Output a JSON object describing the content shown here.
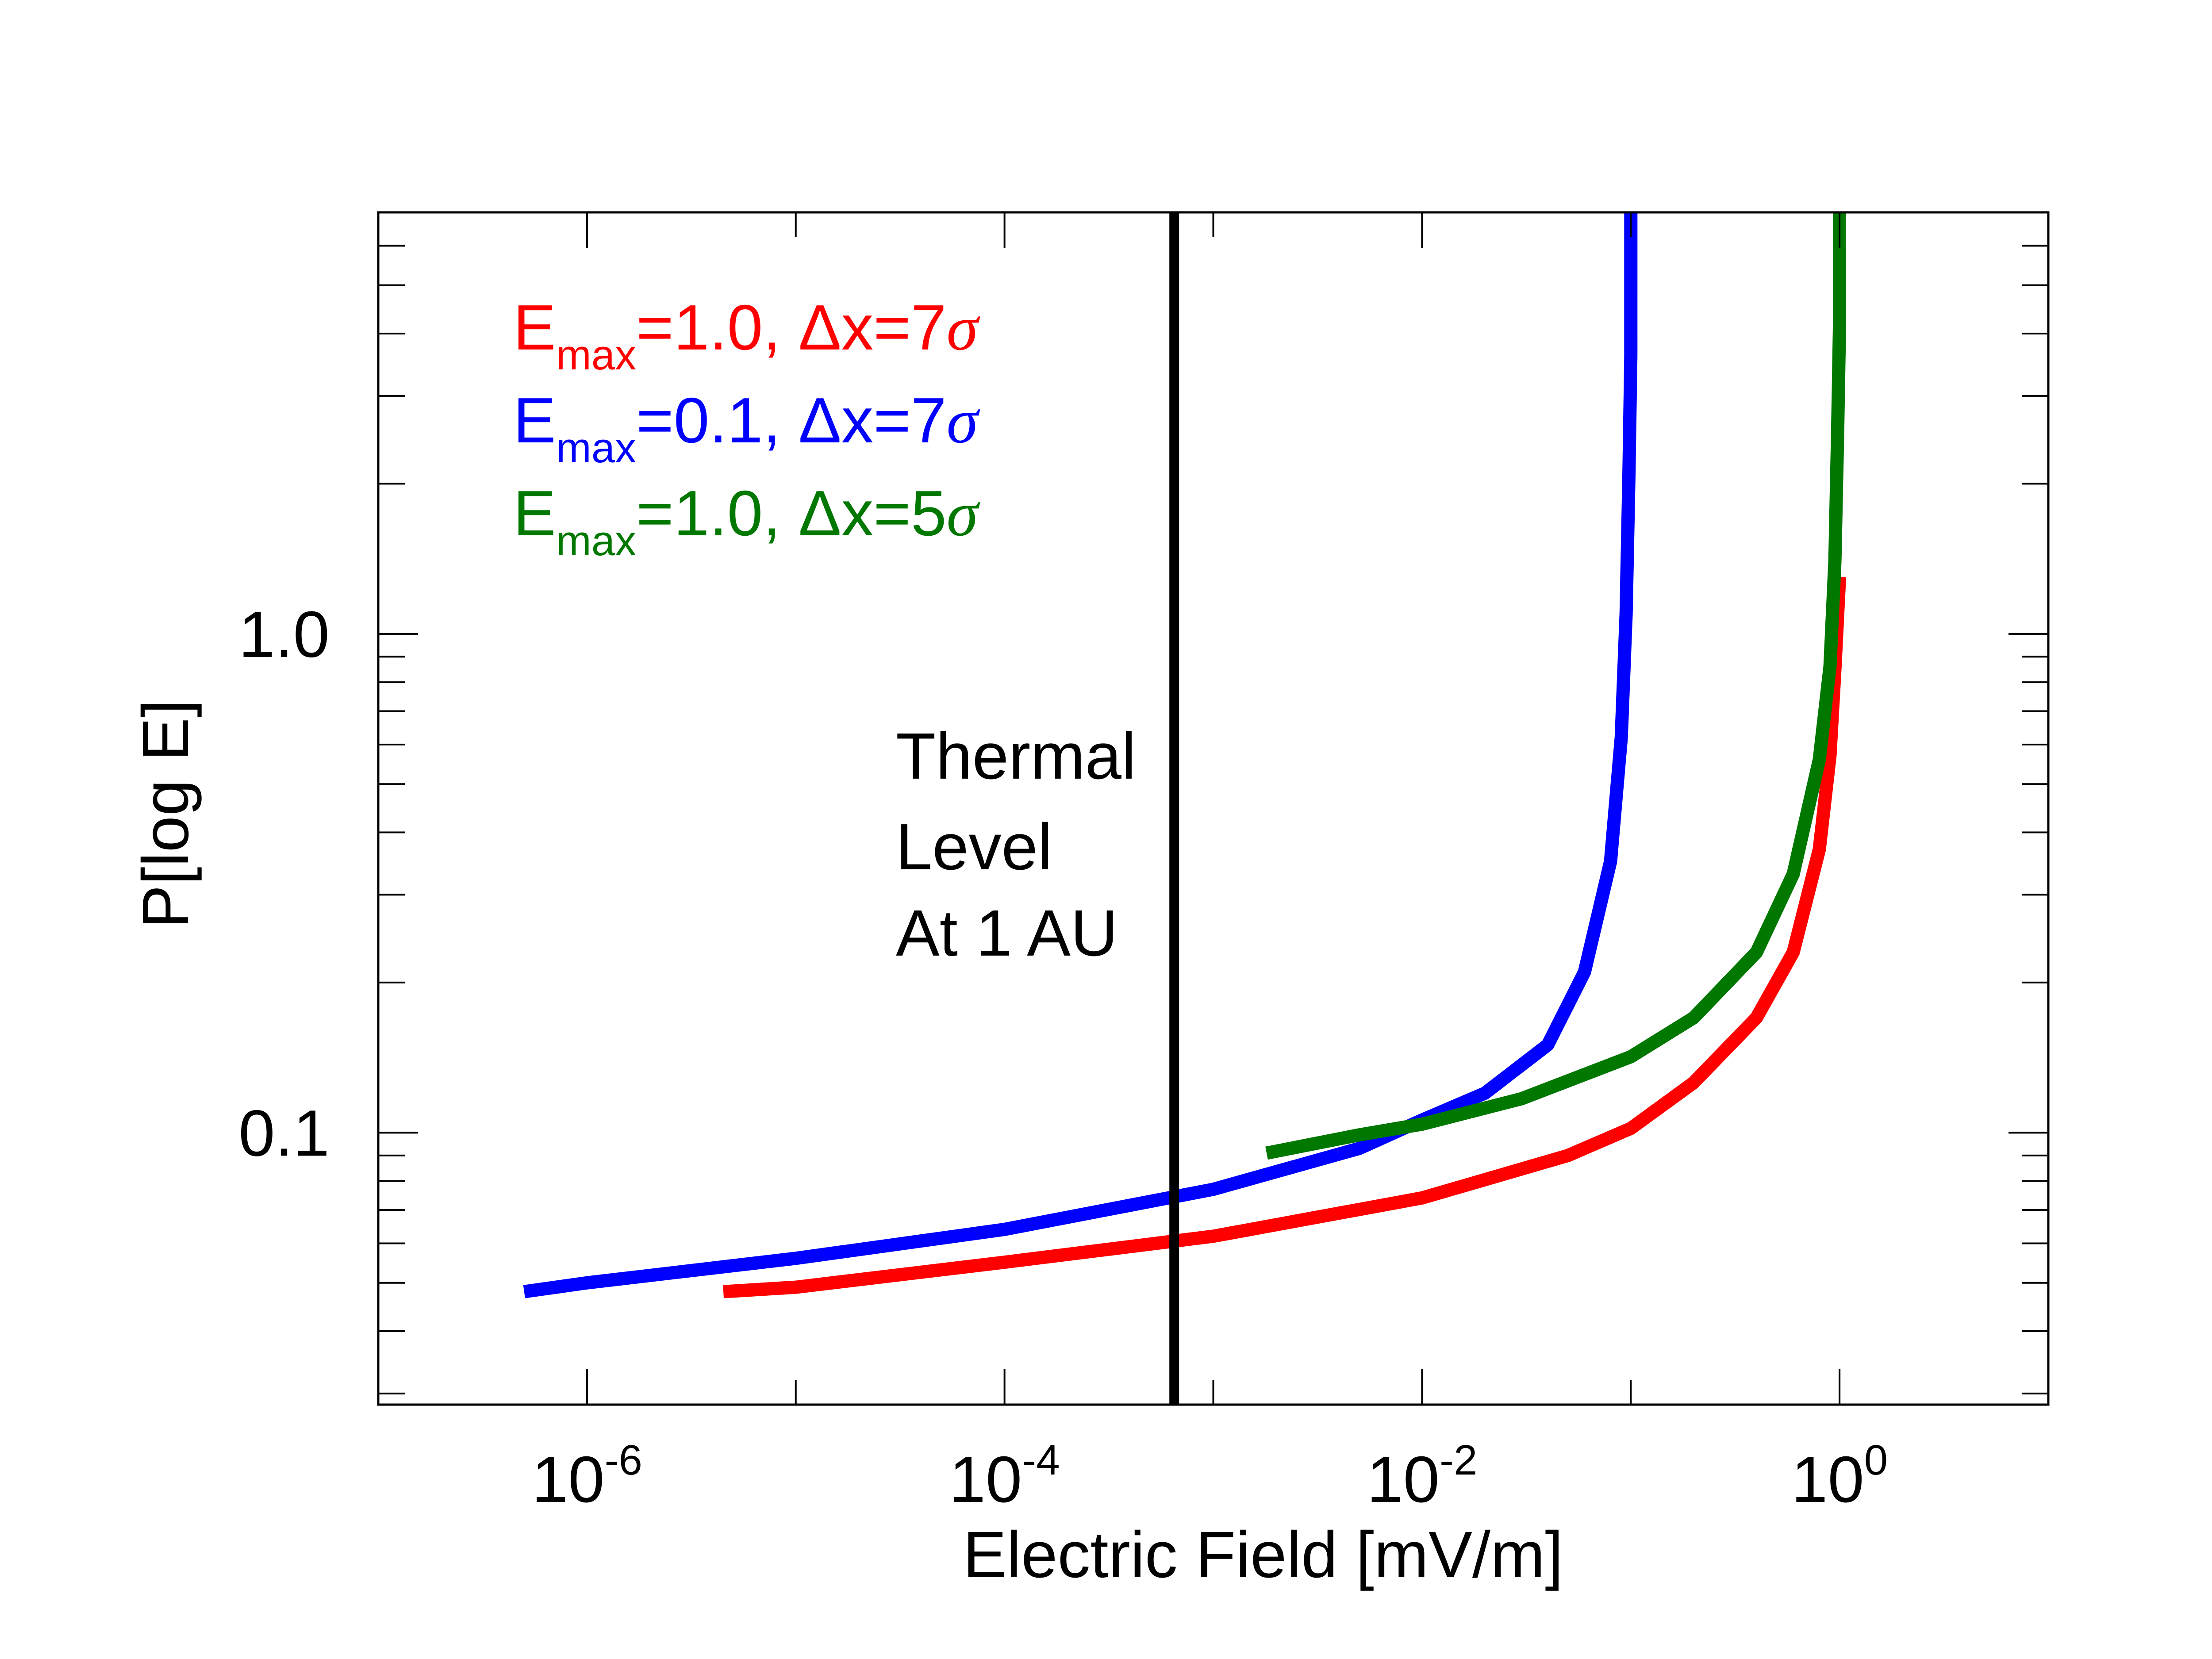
{
  "chart_data": {
    "type": "line",
    "xlabel": "Electric Field [mV/m]",
    "ylabel": "P[log E]",
    "xscale": "log",
    "yscale": "log",
    "xlim": [
      1e-07,
      10
    ],
    "ylim": [
      0.0285,
      7.0
    ],
    "x_ticks": [
      {
        "value": 1e-06,
        "base": "10",
        "exponent": "-6"
      },
      {
        "value": 0.0001,
        "base": "10",
        "exponent": "-4"
      },
      {
        "value": 0.01,
        "base": "10",
        "exponent": "-2"
      },
      {
        "value": 1,
        "base": "10",
        "exponent": "0"
      }
    ],
    "y_ticks": [
      {
        "value": 0.1,
        "label": "0.1"
      },
      {
        "value": 1.0,
        "label": "1.0"
      }
    ],
    "annotation": {
      "lines": [
        "Thermal",
        "Level",
        "At 1 AU"
      ],
      "x_value": 0.00065,
      "color": "#000000"
    },
    "legend": [
      {
        "E": "E",
        "sub": "max",
        "rest": "=1.0, Δx=7",
        "sigma": "σ",
        "color": "#ff0000"
      },
      {
        "E": "E",
        "sub": "max",
        "rest": "=0.1, Δx=7",
        "sigma": "σ",
        "color": "#0000ff"
      },
      {
        "E": "E",
        "sub": "max",
        "rest": "=1.0, Δx=5",
        "sigma": "σ",
        "color": "#007800"
      }
    ],
    "series": [
      {
        "name": "Emax=1.0, Δx=7σ",
        "color": "#ff0000",
        "x": [
          4.5e-06,
          1e-05,
          0.0001,
          0.001,
          0.01,
          0.05,
          0.1,
          0.2,
          0.4,
          0.6,
          0.8,
          0.9,
          0.95,
          1.0
        ],
        "y": [
          0.048,
          0.049,
          0.055,
          0.062,
          0.074,
          0.09,
          0.102,
          0.126,
          0.17,
          0.23,
          0.37,
          0.57,
          0.85,
          1.3
        ]
      },
      {
        "name": "Emax=0.1, Δx=7σ",
        "color": "#0000ff",
        "x": [
          5e-07,
          1e-06,
          1e-05,
          0.0001,
          0.001,
          0.005,
          0.01,
          0.02,
          0.04,
          0.06,
          0.08,
          0.09,
          0.095,
          0.098,
          0.1,
          0.1
        ],
        "y": [
          0.048,
          0.05,
          0.056,
          0.064,
          0.077,
          0.093,
          0.106,
          0.12,
          0.15,
          0.21,
          0.35,
          0.62,
          1.1,
          2.1,
          3.6,
          7.0
        ]
      },
      {
        "name": "Emax=1.0, Δx=5σ",
        "color": "#007800",
        "x": [
          0.0018,
          0.005,
          0.01,
          0.03,
          0.1,
          0.2,
          0.4,
          0.6,
          0.8,
          0.9,
          0.95,
          0.98,
          1.0,
          1.0
        ],
        "y": [
          0.091,
          0.099,
          0.104,
          0.117,
          0.142,
          0.17,
          0.23,
          0.33,
          0.56,
          0.86,
          1.4,
          2.6,
          4.2,
          7.0
        ]
      }
    ]
  }
}
